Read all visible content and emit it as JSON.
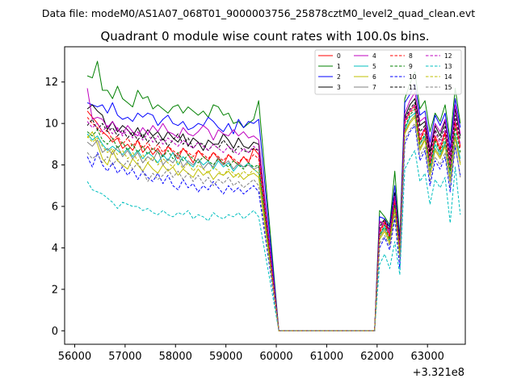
{
  "figure": {
    "suptitle": "Data file: modeM0/AS1A07_068T01_9000003756_25878cztM0_level2_quad_clean.evt"
  },
  "chart_data": {
    "type": "line",
    "title": "Quadrant 0 module wise count rates with 100.0s bins.",
    "xlabel": "",
    "ylabel": "",
    "x_offset_label": "+3.321e8",
    "xlim": [
      55800,
      63750
    ],
    "ylim": [
      -0.65,
      13.7
    ],
    "xticks": [
      56000,
      57000,
      58000,
      59000,
      60000,
      61000,
      62000,
      63000
    ],
    "yticks": [
      0,
      2,
      4,
      6,
      8,
      10,
      12
    ],
    "x_start": 56250,
    "x_step": 100,
    "gap_start": 60050,
    "gap_end": 61950,
    "legend_position": "top-right",
    "series": [
      {
        "name": "0",
        "color": "#ff0000",
        "dash": false,
        "values": [
          10.6,
          10.3,
          10.0,
          9.6,
          9.4,
          9.1,
          9.3,
          8.8,
          9.0,
          8.7,
          9.2,
          8.6,
          8.9,
          8.5,
          8.8,
          8.4,
          8.9,
          8.6,
          8.3,
          8.8,
          8.5,
          8.1,
          8.7,
          8.4,
          8.2,
          8.6,
          8.3,
          8.0,
          8.5,
          8.2,
          8.0,
          8.4,
          8.1,
          8.8,
          8.5
        ],
        "tail": [
          4.8,
          5.3,
          4.6,
          6.3,
          4.0,
          10.1,
          10.6,
          10.9,
          9.2,
          9.8,
          8.1,
          9.4,
          8.8,
          9.6,
          7.9,
          10.1,
          8.9
        ]
      },
      {
        "name": "1",
        "color": "#008000",
        "dash": false,
        "values": [
          12.3,
          12.2,
          13.0,
          11.6,
          11.6,
          11.2,
          11.8,
          11.2,
          11.0,
          10.8,
          11.6,
          11.2,
          11.3,
          10.7,
          10.9,
          10.7,
          10.5,
          10.8,
          10.9,
          10.5,
          10.8,
          10.6,
          10.4,
          10.6,
          10.3,
          10.9,
          10.8,
          10.4,
          10.5,
          10.0,
          10.1,
          9.8,
          10.0,
          10.2,
          11.1
        ],
        "tail": [
          5.8,
          5.5,
          5.1,
          7.7,
          4.5,
          11.2,
          11.9,
          12.5,
          10.7,
          11.1,
          9.6,
          10.5,
          10.1,
          10.9,
          9.2,
          11.7,
          10.0
        ]
      },
      {
        "name": "2",
        "color": "#0000ff",
        "dash": false,
        "values": [
          11.0,
          10.9,
          10.8,
          10.9,
          10.5,
          11.0,
          10.4,
          10.2,
          10.3,
          10.1,
          10.5,
          10.3,
          10.5,
          10.4,
          9.9,
          10.2,
          10.4,
          10.0,
          9.9,
          10.1,
          9.7,
          9.8,
          10.0,
          9.9,
          10.3,
          10.1,
          9.8,
          9.6,
          10.0,
          9.5,
          10.2,
          9.8,
          10.1,
          10.0,
          10.2
        ],
        "tail": [
          5.5,
          5.4,
          5.0,
          7.0,
          4.3,
          11.0,
          11.4,
          11.9,
          10.4,
          10.6,
          9.1,
          10.4,
          9.9,
          10.5,
          8.8,
          11.2,
          9.8
        ]
      },
      {
        "name": "3",
        "color": "#000000",
        "dash": false,
        "values": [
          10.7,
          10.9,
          10.6,
          10.4,
          9.7,
          10.1,
          9.6,
          9.9,
          9.7,
          9.4,
          9.8,
          9.3,
          9.7,
          9.4,
          9.6,
          9.2,
          9.6,
          9.3,
          9.1,
          9.5,
          8.9,
          9.3,
          9.1,
          8.7,
          9.2,
          9.0,
          9.0,
          9.5,
          9.2,
          8.8,
          9.3,
          8.9,
          8.8,
          9.1,
          9.0
        ],
        "tail": [
          5.2,
          5.3,
          4.8,
          6.6,
          4.1,
          10.3,
          10.9,
          11.2,
          9.9,
          10.1,
          8.6,
          9.9,
          9.4,
          10.1,
          8.5,
          10.7,
          9.4
        ]
      },
      {
        "name": "4",
        "color": "#bf00bf",
        "dash": false,
        "values": [
          11.7,
          10.2,
          10.3,
          10.2,
          9.8,
          10.1,
          9.7,
          9.5,
          9.9,
          9.6,
          9.4,
          9.8,
          9.5,
          9.9,
          9.6,
          10.0,
          9.6,
          9.5,
          9.3,
          9.8,
          9.5,
          9.4,
          9.6,
          9.9,
          9.7,
          9.2,
          9.7,
          9.5,
          9.4,
          9.7,
          9.4,
          9.6,
          9.3,
          9.4,
          9.2
        ],
        "tail": [
          5.3,
          5.1,
          4.7,
          6.5,
          3.9,
          10.5,
          11.1,
          11.5,
          10.1,
          10.3,
          8.8,
          10.0,
          9.6,
          10.2,
          8.4,
          10.9,
          9.5
        ]
      },
      {
        "name": "5",
        "color": "#00bfbf",
        "dash": false,
        "values": [
          9.5,
          9.2,
          9.4,
          9.0,
          8.7,
          8.9,
          8.7,
          8.5,
          8.8,
          8.4,
          8.7,
          8.3,
          8.6,
          8.4,
          8.1,
          8.5,
          8.2,
          8.6,
          8.0,
          8.4,
          8.1,
          7.9,
          8.3,
          8.0,
          8.2,
          7.8,
          8.2,
          7.9,
          8.1,
          7.7,
          8.0,
          7.9,
          8.1,
          7.8,
          7.6
        ],
        "tail": [
          4.6,
          5.0,
          4.3,
          6.0,
          3.7,
          9.7,
          10.3,
          10.5,
          9.0,
          9.4,
          7.7,
          9.0,
          8.5,
          9.1,
          7.5,
          9.5,
          8.3
        ]
      },
      {
        "name": "6",
        "color": "#bfbf00",
        "dash": false,
        "values": [
          9.3,
          9.6,
          9.0,
          8.3,
          8.0,
          8.7,
          8.2,
          8.0,
          7.8,
          8.3,
          8.0,
          7.7,
          8.1,
          7.8,
          7.6,
          8.0,
          7.7,
          7.9,
          7.5,
          7.8,
          7.6,
          7.4,
          7.8,
          7.5,
          7.7,
          7.3,
          7.6,
          7.5,
          7.7,
          7.4,
          7.6,
          7.3,
          7.5,
          7.6,
          7.4
        ],
        "tail": [
          4.4,
          4.8,
          4.2,
          5.8,
          3.6,
          9.5,
          10.0,
          10.3,
          8.7,
          9.2,
          7.5,
          8.7,
          8.3,
          8.9,
          7.2,
          9.3,
          8.0
        ]
      },
      {
        "name": "7",
        "color": "#808080",
        "dash": false,
        "values": [
          9.1,
          8.9,
          9.2,
          8.6,
          8.8,
          8.5,
          8.9,
          8.4,
          8.7,
          8.3,
          8.6,
          8.1,
          8.4,
          8.2,
          8.7,
          8.0,
          8.3,
          8.1,
          8.5,
          7.9,
          8.2,
          8.0,
          8.3,
          7.8,
          8.1,
          7.9,
          8.4,
          8.0,
          8.2,
          7.8,
          8.1,
          7.9,
          8.0,
          7.8,
          7.9
        ],
        "tail": [
          4.5,
          4.9,
          4.4,
          5.9,
          3.8,
          9.6,
          10.1,
          10.4,
          8.8,
          9.3,
          7.6,
          8.8,
          8.4,
          9.0,
          7.3,
          9.4,
          8.1
        ]
      },
      {
        "name": "8",
        "color": "#ff0000",
        "dash": true,
        "values": [
          10.3,
          10.0,
          9.8,
          9.5,
          9.7,
          9.2,
          9.4,
          9.0,
          9.3,
          8.9,
          9.2,
          8.8,
          9.1,
          8.7,
          9.0,
          8.6,
          8.9,
          8.7,
          8.5,
          8.8,
          8.6,
          8.4,
          8.7,
          8.5,
          8.3,
          8.6,
          8.4,
          8.2,
          8.5,
          8.3,
          8.1,
          8.4,
          8.2,
          8.5,
          8.3
        ],
        "tail": [
          4.7,
          5.2,
          4.5,
          6.2,
          3.9,
          10.0,
          10.5,
          10.8,
          9.1,
          9.7,
          8.0,
          9.3,
          8.7,
          9.5,
          7.8,
          10.0,
          8.8
        ]
      },
      {
        "name": "9",
        "color": "#008000",
        "dash": true,
        "values": [
          9.6,
          9.4,
          9.7,
          9.2,
          9.0,
          9.3,
          8.8,
          9.1,
          8.7,
          9.0,
          8.6,
          8.9,
          8.5,
          8.8,
          8.6,
          8.4,
          8.7,
          8.3,
          8.6,
          8.2,
          8.5,
          8.3,
          8.1,
          8.4,
          8.2,
          8.0,
          8.3,
          8.1,
          7.9,
          8.2,
          8.0,
          7.8,
          8.1,
          7.9,
          8.0
        ],
        "tail": [
          4.6,
          5.1,
          4.4,
          6.1,
          3.8,
          9.8,
          10.4,
          10.7,
          9.0,
          9.5,
          7.9,
          9.2,
          8.6,
          9.3,
          7.7,
          9.8,
          8.6
        ]
      },
      {
        "name": "10",
        "color": "#0000ff",
        "dash": true,
        "values": [
          8.4,
          7.9,
          8.6,
          8.0,
          7.7,
          8.1,
          7.6,
          7.9,
          7.5,
          7.8,
          7.3,
          7.7,
          7.4,
          7.2,
          7.6,
          7.1,
          7.5,
          7.0,
          6.8,
          7.3,
          6.9,
          7.1,
          6.7,
          7.0,
          6.8,
          7.2,
          6.9,
          6.6,
          7.0,
          6.7,
          6.9,
          6.6,
          6.8,
          7.0,
          6.7
        ],
        "tail": [
          4.0,
          4.5,
          3.9,
          5.4,
          3.0,
          9.0,
          9.6,
          9.9,
          8.2,
          8.7,
          7.0,
          8.2,
          7.8,
          8.4,
          6.7,
          8.9,
          7.5
        ]
      },
      {
        "name": "11",
        "color": "#000000",
        "dash": true,
        "values": [
          9.9,
          10.2,
          9.7,
          10.0,
          9.6,
          9.8,
          9.4,
          9.7,
          9.3,
          9.6,
          9.2,
          9.5,
          9.1,
          9.4,
          9.0,
          9.3,
          8.9,
          9.2,
          9.5,
          9.0,
          9.3,
          8.8,
          9.1,
          9.0,
          8.7,
          9.0,
          8.8,
          9.2,
          8.9,
          8.6,
          8.9,
          8.7,
          8.6,
          8.8,
          8.7
        ],
        "tail": [
          5.0,
          5.4,
          4.9,
          6.7,
          4.2,
          10.2,
          10.7,
          11.0,
          9.6,
          9.9,
          8.4,
          9.7,
          9.2,
          9.9,
          8.2,
          10.4,
          9.2
        ]
      },
      {
        "name": "12",
        "color": "#bf00bf",
        "dash": true,
        "values": [
          10.1,
          9.8,
          10.0,
          9.6,
          9.9,
          9.5,
          9.8,
          9.4,
          9.7,
          9.3,
          9.6,
          9.2,
          9.5,
          9.1,
          9.4,
          9.0,
          9.3,
          9.1,
          8.9,
          9.2,
          9.0,
          8.8,
          9.1,
          8.9,
          8.7,
          9.0,
          8.8,
          8.6,
          8.9,
          8.7,
          8.5,
          8.8,
          8.6,
          8.9,
          8.7
        ],
        "tail": [
          4.9,
          5.3,
          4.8,
          6.5,
          4.1,
          10.1,
          10.6,
          10.9,
          9.4,
          9.8,
          8.2,
          9.6,
          9.0,
          9.7,
          8.0,
          10.2,
          9.0
        ]
      },
      {
        "name": "13",
        "color": "#00bfbf",
        "dash": true,
        "values": [
          7.2,
          6.8,
          6.7,
          6.6,
          6.4,
          6.2,
          5.9,
          6.2,
          6.1,
          6.0,
          6.0,
          5.8,
          5.9,
          5.7,
          5.6,
          5.8,
          5.6,
          5.5,
          5.7,
          5.6,
          5.8,
          5.4,
          5.6,
          5.5,
          5.3,
          5.7,
          5.5,
          5.4,
          5.6,
          5.5,
          5.7,
          5.4,
          5.6,
          5.8,
          5.5
        ],
        "tail": [
          3.2,
          3.7,
          3.0,
          4.3,
          2.7,
          7.8,
          8.3,
          8.7,
          7.2,
          7.6,
          6.1,
          7.3,
          6.9,
          7.4,
          5.2,
          7.9,
          5.6
        ]
      },
      {
        "name": "14",
        "color": "#bfbf00",
        "dash": true,
        "values": [
          9.4,
          9.1,
          9.3,
          8.9,
          8.6,
          8.8,
          8.5,
          8.7,
          8.3,
          8.6,
          8.2,
          8.5,
          8.1,
          8.4,
          8.0,
          8.3,
          8.1,
          7.9,
          8.2,
          7.8,
          8.1,
          7.7,
          8.0,
          7.8,
          7.6,
          7.9,
          7.7,
          7.5,
          7.8,
          7.6,
          7.4,
          7.7,
          7.5,
          7.8,
          7.6
        ],
        "tail": [
          4.5,
          4.9,
          4.3,
          5.9,
          3.6,
          9.6,
          10.1,
          10.4,
          8.8,
          9.3,
          7.6,
          8.8,
          8.4,
          9.0,
          7.3,
          9.4,
          8.1
        ]
      },
      {
        "name": "15",
        "color": "#808080",
        "dash": true,
        "values": [
          8.6,
          8.3,
          8.5,
          8.1,
          8.4,
          8.0,
          8.3,
          7.9,
          8.2,
          7.8,
          8.1,
          7.7,
          7.2,
          7.6,
          7.3,
          7.5,
          7.8,
          7.4,
          7.7,
          7.3,
          7.6,
          7.2,
          7.5,
          7.1,
          7.4,
          7.0,
          7.3,
          7.1,
          7.4,
          7.0,
          7.2,
          6.9,
          7.1,
          7.3,
          7.0
        ],
        "tail": [
          4.2,
          4.6,
          4.1,
          5.6,
          3.4,
          9.2,
          9.7,
          10.0,
          8.4,
          8.9,
          7.2,
          8.4,
          8.0,
          8.6,
          6.9,
          9.0,
          7.4
        ]
      }
    ]
  }
}
